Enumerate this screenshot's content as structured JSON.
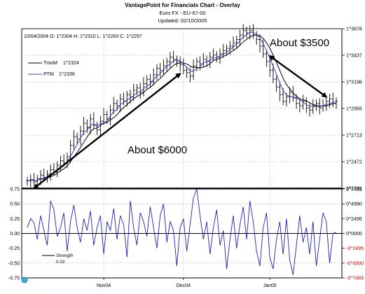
{
  "header": {
    "title": "VantagePoint for Financials Chart - Overlay",
    "subtitle": "Euro FX - EU-67-00",
    "updated": "Updated: 02/10/2005"
  },
  "chart_data": [
    {
      "type": "ohlc",
      "info_text": "10/04/2004  O: 1^2304  H: 1^2310  L: 1^2263  C: 1^2297",
      "ylim": [
        1.2231,
        1.3678
      ],
      "y_ticks": [
        1.2231,
        1.2472,
        1.2713,
        1.2955,
        1.3196,
        1.3437,
        1.3678
      ],
      "y_tick_labels": [
        "1^2231",
        "1^2472",
        "1^2713",
        "1^2955",
        "1^3196",
        "1^3437",
        "1^3678"
      ],
      "x_tick_labels": [
        "Nov04",
        "Dec04",
        "Jan05"
      ],
      "x_tick_index": [
        23,
        47,
        73
      ],
      "grid": true,
      "legend": [
        {
          "name": "TmoM",
          "value": "1^2324",
          "color": "#000000"
        },
        {
          "name": "PTM",
          "value": "1^2336",
          "color": "#4040c0"
        }
      ],
      "closes": [
        1.23,
        1.231,
        1.229,
        1.232,
        1.235,
        1.233,
        1.236,
        1.24,
        1.238,
        1.244,
        1.248,
        1.246,
        1.252,
        1.262,
        1.27,
        1.268,
        1.275,
        1.282,
        1.278,
        1.286,
        1.28,
        1.276,
        1.284,
        1.29,
        1.286,
        1.294,
        1.3,
        1.298,
        1.304,
        1.302,
        1.308,
        1.306,
        1.312,
        1.314,
        1.31,
        1.318,
        1.322,
        1.32,
        1.326,
        1.332,
        1.33,
        1.334,
        1.338,
        1.342,
        1.34,
        1.338,
        1.335,
        1.33,
        1.328,
        1.325,
        1.334,
        1.338,
        1.336,
        1.34,
        1.338,
        1.342,
        1.344,
        1.342,
        1.345,
        1.348,
        1.35,
        1.352,
        1.355,
        1.358,
        1.362,
        1.366,
        1.364,
        1.366,
        1.362,
        1.358,
        1.352,
        1.345,
        1.338,
        1.33,
        1.322,
        1.315,
        1.308,
        1.302,
        1.306,
        1.31,
        1.305,
        1.3,
        1.298,
        1.302,
        1.296,
        1.294,
        1.298,
        1.3,
        1.296,
        1.298,
        1.302,
        1.304,
        1.3,
        1.302
      ],
      "annotations": [
        {
          "text": "About $6000",
          "from_index": 2,
          "from_value": 1.2231,
          "to_index": 46,
          "to_value": 1.327
        },
        {
          "text": "About $3500",
          "from_index": 73,
          "from_value": 1.343,
          "to_index": 90,
          "to_value": 1.306
        }
      ]
    },
    {
      "type": "line",
      "ylim": [
        -0.75,
        0.75
      ],
      "left_ticks": [
        0.75,
        0.5,
        0.25,
        0.0,
        -0.25,
        -0.5,
        -0.75
      ],
      "left_tick_labels": [
        "0.75",
        "0.50",
        "0.25",
        "0.00",
        "-0.25",
        "-0.50",
        "-0.75"
      ],
      "right_tick_labels": [
        "0^7485",
        "0^4990",
        "0^2495",
        "0^0000",
        "-0^2495",
        "-0^4990",
        "-0^7485"
      ],
      "reference_lines": [
        0.5,
        0.0,
        -0.5
      ],
      "legend": {
        "name": "Strength",
        "value": "0.02"
      },
      "series": [
        {
          "name": "Strength",
          "values": [
            0.1,
            0.25,
            0.18,
            -0.1,
            0.3,
            0.05,
            -0.2,
            0.55,
            0.4,
            -0.05,
            0.1,
            0.35,
            -0.3,
            0.2,
            0.48,
            0.1,
            -0.15,
            0.25,
            0.05,
            0.38,
            -0.2,
            0.1,
            0.3,
            -0.35,
            0.2,
            0.05,
            0.42,
            -0.1,
            0.3,
            0.15,
            -0.4,
            0.55,
            0.1,
            -0.2,
            0.35,
            0.2,
            -0.05,
            0.45,
            0.1,
            -0.25,
            0.3,
            0.5,
            -0.15,
            0.2,
            0.05,
            -0.55,
            0.1,
            0.25,
            -0.3,
            0.15,
            0.6,
            0.75,
            0.3,
            -0.1,
            0.2,
            -0.35,
            0.1,
            0.4,
            -0.2,
            0.05,
            -0.6,
            -0.1,
            0.3,
            -0.25,
            0.15,
            0.45,
            -0.1,
            0.55,
            0.2,
            -0.3,
            -0.55,
            0.1,
            0.35,
            -0.4,
            -0.6,
            -0.1,
            0.2,
            -0.35,
            0.25,
            -0.45,
            -0.7,
            -0.2,
            0.3,
            -0.15,
            0.1,
            -0.35,
            0.2,
            -0.55,
            -0.1,
            0.35,
            0.2,
            -0.5,
            0.0,
            0.02
          ]
        }
      ]
    }
  ]
}
